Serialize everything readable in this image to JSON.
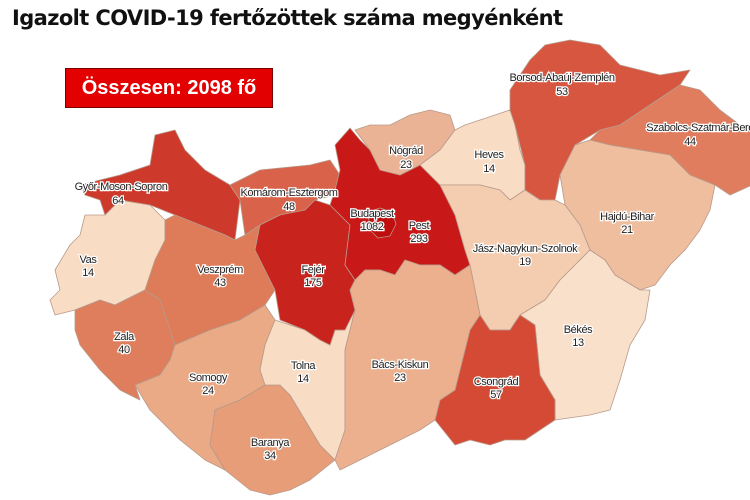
{
  "title": "Igazolt COVID-19 fertőzöttek száma megyénként",
  "total_label": "Összesen: 2098 fő",
  "counties": {
    "borsod": {
      "name": "Borsod-Abaúj-Zemplén",
      "value": "53",
      "color": "#d65640"
    },
    "szabolcs": {
      "name": "Szabolcs-Szatmár-Bereg",
      "value": "44",
      "color": "#e07d5f"
    },
    "nograd": {
      "name": "Nógrád",
      "value": "23",
      "color": "#eab395"
    },
    "heves": {
      "name": "Heves",
      "value": "14",
      "color": "#f8dcc4"
    },
    "gyor": {
      "name": "Győr-Moson-Sopron",
      "value": "64",
      "color": "#cd3a2b"
    },
    "komarom": {
      "name": "Komárom-Esztergom",
      "value": "48",
      "color": "#d9634a"
    },
    "budapest": {
      "name": "Budapest",
      "value": "1082",
      "color": "#c00d0d"
    },
    "pest": {
      "name": "Pest",
      "value": "293",
      "color": "#c81817"
    },
    "hajdu": {
      "name": "Hajdú-Bihar",
      "value": "21",
      "color": "#efbe9f"
    },
    "jasz": {
      "name": "Jász-Nagykun-Szolnok",
      "value": "19",
      "color": "#f4cdb0"
    },
    "vas": {
      "name": "Vas",
      "value": "14",
      "color": "#f8dcc4"
    },
    "veszprem": {
      "name": "Veszprém",
      "value": "43",
      "color": "#de7b58"
    },
    "fejer": {
      "name": "Fejér",
      "value": "175",
      "color": "#c9231d"
    },
    "zala": {
      "name": "Zala",
      "value": "40",
      "color": "#de7e5d"
    },
    "bekes": {
      "name": "Békés",
      "value": "13",
      "color": "#f9e0ca"
    },
    "tolna": {
      "name": "Tolna",
      "value": "14",
      "color": "#f8dcc4"
    },
    "bacs": {
      "name": "Bács-Kiskun",
      "value": "23",
      "color": "#ecb08e"
    },
    "somogy": {
      "name": "Somogy",
      "value": "24",
      "color": "#eaaa86"
    },
    "csongrad": {
      "name": "Csongrád",
      "value": "57",
      "color": "#d44a35"
    },
    "baranya": {
      "name": "Baranya",
      "value": "34",
      "color": "#e69d78"
    }
  }
}
